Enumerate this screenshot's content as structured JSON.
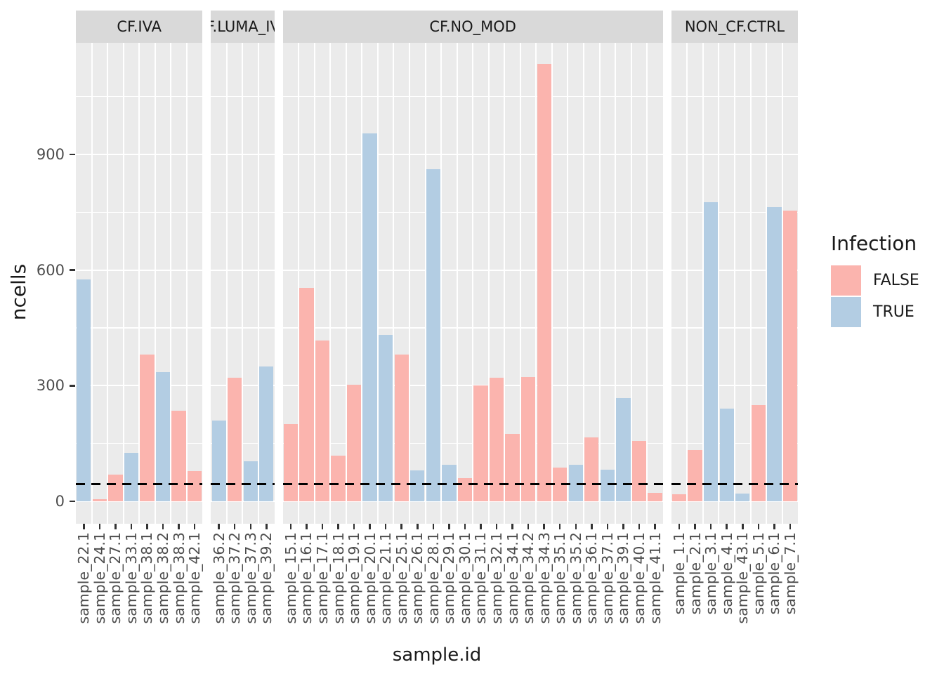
{
  "axes": {
    "y_label": "ncells",
    "x_label": "sample.id",
    "y_ticks": [
      "0",
      "300",
      "600",
      "900"
    ]
  },
  "legend": {
    "title": "Infection",
    "items": [
      {
        "label": "FALSE",
        "color": "#FBB4AE"
      },
      {
        "label": "TRUE",
        "color": "#B3CDE3"
      }
    ]
  },
  "colors": {
    "false_fill": "#FBB4AE",
    "true_fill": "#B3CDE3",
    "strip_bg": "#D9D9D9",
    "panel_bg": "#EBEBEB",
    "grid": "#FFFFFF",
    "axis_text": "#4D4D4D",
    "tick_mark": "#333333",
    "text": "#1A1A1A",
    "hline": "#000000"
  },
  "chart_data": {
    "type": "bar",
    "title": "",
    "xlabel": "sample.id",
    "ylabel": "ncells",
    "ylim": [
      0,
      1190
    ],
    "y_major_gridlines": [
      0,
      300,
      600,
      900
    ],
    "y_minor_gridlines": [
      150,
      450,
      750,
      1050
    ],
    "grid": "on",
    "legend_position": "right",
    "legend_title": "Infection",
    "series_colors": {
      "FALSE": "#FBB4AE",
      "TRUE": "#B3CDE3"
    },
    "hline": {
      "y": 45,
      "linetype": "dashed",
      "color": "#000000"
    },
    "facets": [
      {
        "label": "CF.IVA",
        "bars": [
          {
            "id": "sample_22.1",
            "infection": "TRUE",
            "ncells": 575
          },
          {
            "id": "sample_24.1",
            "infection": "FALSE",
            "ncells": 5
          },
          {
            "id": "sample_27.1",
            "infection": "FALSE",
            "ncells": 70
          },
          {
            "id": "sample_33.1",
            "infection": "TRUE",
            "ncells": 125
          },
          {
            "id": "sample_38.1",
            "infection": "FALSE",
            "ncells": 380
          },
          {
            "id": "sample_38.2",
            "infection": "TRUE",
            "ncells": 335
          },
          {
            "id": "sample_38.3",
            "infection": "FALSE",
            "ncells": 235
          },
          {
            "id": "sample_42.1",
            "infection": "FALSE",
            "ncells": 78
          }
        ]
      },
      {
        "label": "CF.LUMA_IVA",
        "bars": [
          {
            "id": "sample_36.2",
            "infection": "TRUE",
            "ncells": 210
          },
          {
            "id": "sample_37.2",
            "infection": "FALSE",
            "ncells": 320
          },
          {
            "id": "sample_37.3",
            "infection": "TRUE",
            "ncells": 103
          },
          {
            "id": "sample_39.2",
            "infection": "TRUE",
            "ncells": 350
          }
        ]
      },
      {
        "label": "CF.NO_MOD",
        "bars": [
          {
            "id": "sample_15.1",
            "infection": "FALSE",
            "ncells": 200
          },
          {
            "id": "sample_16.1",
            "infection": "FALSE",
            "ncells": 553
          },
          {
            "id": "sample_17.1",
            "infection": "FALSE",
            "ncells": 417
          },
          {
            "id": "sample_18.1",
            "infection": "FALSE",
            "ncells": 118
          },
          {
            "id": "sample_19.1",
            "infection": "FALSE",
            "ncells": 303
          },
          {
            "id": "sample_20.1",
            "infection": "TRUE",
            "ncells": 955
          },
          {
            "id": "sample_21.1",
            "infection": "TRUE",
            "ncells": 432
          },
          {
            "id": "sample_25.1",
            "infection": "FALSE",
            "ncells": 380
          },
          {
            "id": "sample_26.1",
            "infection": "TRUE",
            "ncells": 80
          },
          {
            "id": "sample_28.1",
            "infection": "TRUE",
            "ncells": 862
          },
          {
            "id": "sample_29.1",
            "infection": "TRUE",
            "ncells": 95
          },
          {
            "id": "sample_30.1",
            "infection": "FALSE",
            "ncells": 60
          },
          {
            "id": "sample_31.1",
            "infection": "FALSE",
            "ncells": 300
          },
          {
            "id": "sample_32.1",
            "infection": "FALSE",
            "ncells": 320
          },
          {
            "id": "sample_34.1",
            "infection": "FALSE",
            "ncells": 175
          },
          {
            "id": "sample_34.2",
            "infection": "FALSE",
            "ncells": 322
          },
          {
            "id": "sample_34.3",
            "infection": "FALSE",
            "ncells": 1135
          },
          {
            "id": "sample_35.1",
            "infection": "FALSE",
            "ncells": 87
          },
          {
            "id": "sample_35.2",
            "infection": "TRUE",
            "ncells": 94
          },
          {
            "id": "sample_36.1",
            "infection": "FALSE",
            "ncells": 165
          },
          {
            "id": "sample_37.1",
            "infection": "TRUE",
            "ncells": 82
          },
          {
            "id": "sample_39.1",
            "infection": "TRUE",
            "ncells": 268
          },
          {
            "id": "sample_40.1",
            "infection": "FALSE",
            "ncells": 157
          },
          {
            "id": "sample_41.1",
            "infection": "FALSE",
            "ncells": 22
          }
        ]
      },
      {
        "label": "NON_CF.CTRL",
        "bars": [
          {
            "id": "sample_1.1",
            "infection": "FALSE",
            "ncells": 18
          },
          {
            "id": "sample_2.1",
            "infection": "FALSE",
            "ncells": 133
          },
          {
            "id": "sample_3.1",
            "infection": "TRUE",
            "ncells": 777
          },
          {
            "id": "sample_4.1",
            "infection": "TRUE",
            "ncells": 240
          },
          {
            "id": "sample_43.1",
            "infection": "TRUE",
            "ncells": 20
          },
          {
            "id": "sample_5.1",
            "infection": "FALSE",
            "ncells": 250
          },
          {
            "id": "sample_6.1",
            "infection": "TRUE",
            "ncells": 763
          },
          {
            "id": "sample_7.1",
            "infection": "FALSE",
            "ncells": 755
          }
        ]
      }
    ]
  }
}
